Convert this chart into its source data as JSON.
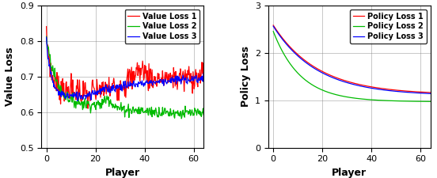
{
  "xlabel": "Player",
  "left_ylabel": "Value Loss",
  "right_ylabel": "Policy Loss",
  "left_ylim": [
    0.5,
    0.9
  ],
  "right_ylim": [
    0.0,
    3.0
  ],
  "xlim": [
    -2,
    64
  ],
  "left_yticks": [
    0.5,
    0.6,
    0.7,
    0.8,
    0.9
  ],
  "right_yticks": [
    0.0,
    1.0,
    2.0,
    3.0
  ],
  "xticks": [
    0,
    20,
    40,
    60
  ],
  "colors": {
    "loss1": "#FF0000",
    "loss2": "#00BB00",
    "loss3": "#0000FF"
  },
  "legend_left": [
    "Value Loss 1",
    "Value Loss 2",
    "Value Loss 3"
  ],
  "legend_right": [
    "Policy Loss 1",
    "Policy Loss 2",
    "Policy Loss 3"
  ],
  "n_points": 300,
  "seed": 7
}
